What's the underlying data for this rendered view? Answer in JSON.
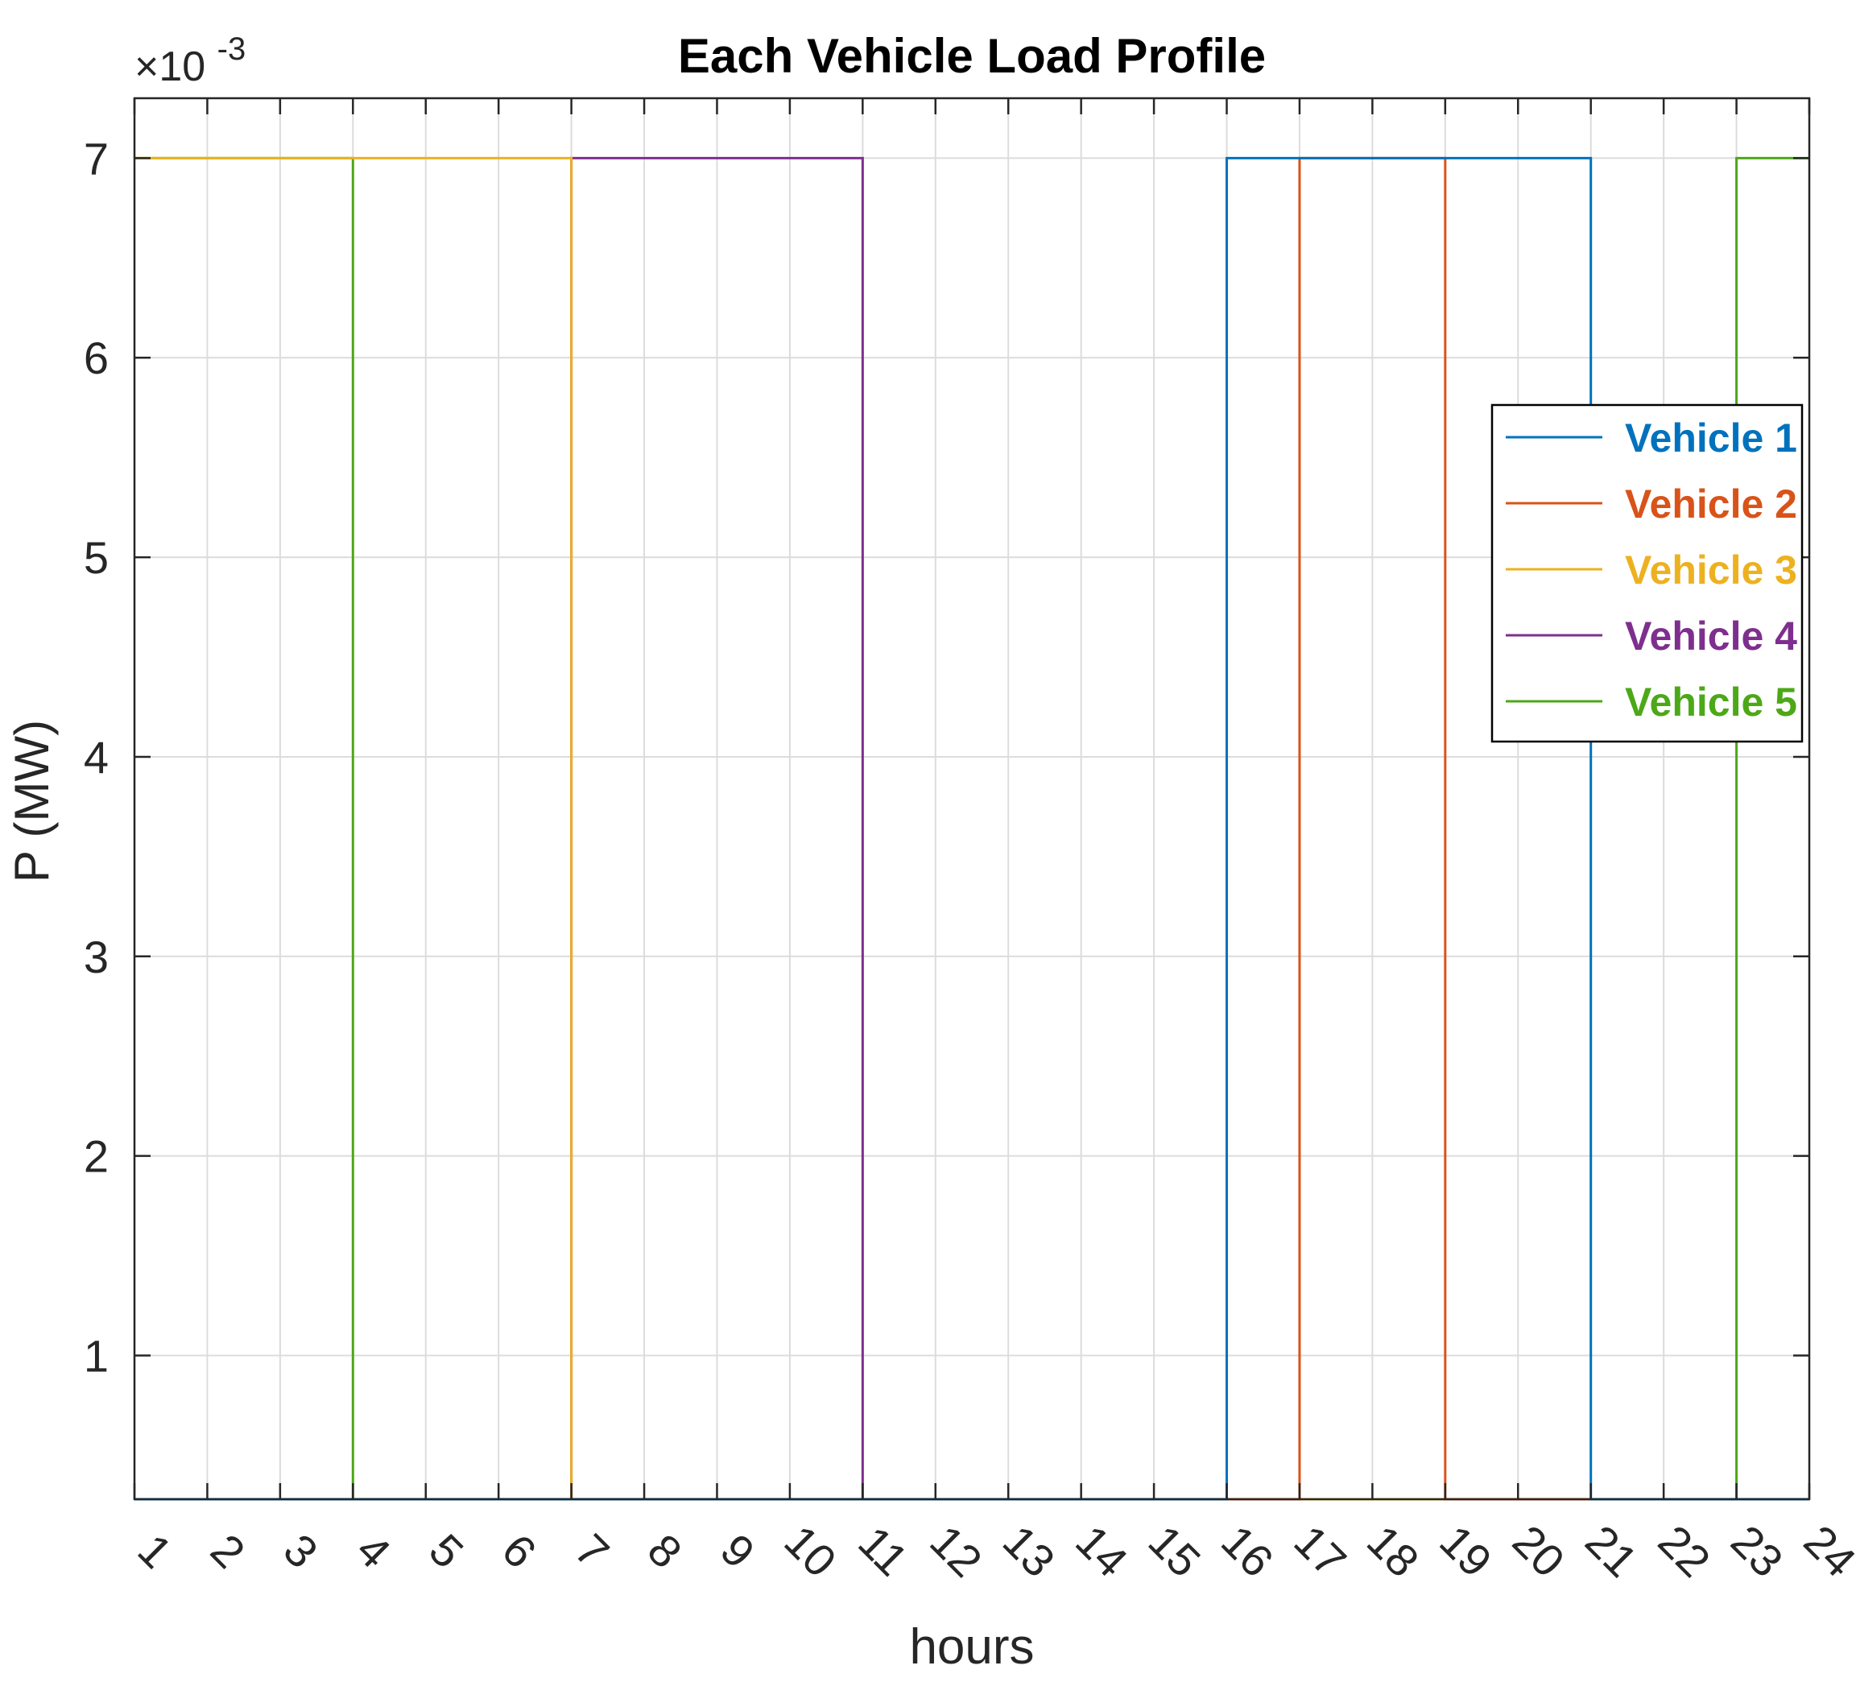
{
  "chart_data": {
    "type": "line",
    "title": "Each Vehicle Load Profile",
    "xlabel": "hours",
    "ylabel": "P (MW)",
    "y_exponent_label": "×10",
    "y_exponent_power": "-3",
    "xlim": [
      1,
      24
    ],
    "ylim": [
      0.00028,
      0.0073
    ],
    "x_ticks": [
      1,
      2,
      3,
      4,
      5,
      6,
      7,
      8,
      9,
      10,
      11,
      12,
      13,
      14,
      15,
      16,
      17,
      18,
      19,
      20,
      21,
      22,
      23,
      24
    ],
    "x_tick_labels": [
      "1",
      "2",
      "3",
      "4",
      "5",
      "6",
      "7",
      "8",
      "9",
      "10",
      "11",
      "12",
      "13",
      "14",
      "15",
      "16",
      "17",
      "18",
      "19",
      "20",
      "21",
      "22",
      "23",
      "24"
    ],
    "y_ticks": [
      0.001,
      0.002,
      0.003,
      0.004,
      0.005,
      0.006,
      0.007
    ],
    "y_tick_labels": [
      "1",
      "2",
      "3",
      "4",
      "5",
      "6",
      "7"
    ],
    "grid": true,
    "legend_position": "right",
    "x": [
      1,
      2,
      3,
      4,
      5,
      6,
      7,
      8,
      9,
      10,
      11,
      12,
      13,
      14,
      15,
      16,
      17,
      18,
      19,
      20,
      21,
      22,
      23,
      24
    ],
    "series": [
      {
        "name": "Vehicle 1",
        "color": "#0072BD",
        "values": [
          0,
          0,
          0,
          0,
          0,
          0,
          0,
          0,
          0,
          0,
          0,
          0,
          0,
          0,
          0,
          0.007,
          0.007,
          0.007,
          0.007,
          0.007,
          0,
          0,
          0,
          0
        ]
      },
      {
        "name": "Vehicle 2",
        "color": "#D95319",
        "values": [
          0,
          0,
          0,
          0,
          0,
          0,
          0,
          0,
          0,
          0,
          0,
          0,
          0,
          0,
          0,
          0,
          0.007,
          0.007,
          0,
          0,
          0,
          0,
          0,
          0
        ]
      },
      {
        "name": "Vehicle 3",
        "color": "#EDB120",
        "values": [
          0.007,
          0.007,
          0.007,
          0.007,
          0.007,
          0.007,
          0,
          0,
          0,
          0,
          0,
          0,
          0,
          0,
          0,
          0,
          0,
          0,
          0,
          0,
          0,
          0,
          0,
          0
        ]
      },
      {
        "name": "Vehicle 4",
        "color": "#7E2F8E",
        "values": [
          0,
          0,
          0,
          0,
          0,
          0,
          0.007,
          0.007,
          0.007,
          0.007,
          0,
          0,
          0,
          0,
          0,
          0,
          0,
          0,
          0,
          0,
          0,
          0,
          0,
          0
        ]
      },
      {
        "name": "Vehicle 5",
        "color": "#4DA818",
        "values": [
          0.007,
          0.007,
          0.007,
          0,
          0,
          0,
          0,
          0,
          0,
          0,
          0,
          0,
          0,
          0,
          0,
          0,
          0,
          0,
          0,
          0,
          0,
          0,
          0.007,
          0.007
        ]
      }
    ]
  }
}
